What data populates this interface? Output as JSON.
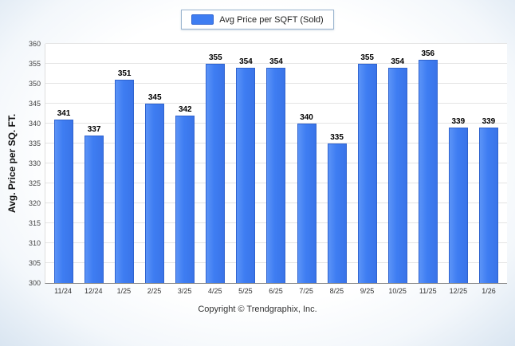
{
  "legend": {
    "label": "Avg Price per SQFT (Sold)"
  },
  "footer": {
    "copyright": "Copyright © Trendgraphix, Inc."
  },
  "colors": {
    "bar": "#3e7df2",
    "bar_border": "#2f63cf",
    "legend_border": "#9ab4cf",
    "gridline": "#e4e4e4",
    "axis": "#8a8a8a"
  },
  "chart_data": {
    "type": "bar",
    "title": "",
    "xlabel": "",
    "ylabel": "Avg. Price per SQ. FT.",
    "categories": [
      "11/24",
      "12/24",
      "1/25",
      "2/25",
      "3/25",
      "4/25",
      "5/25",
      "6/25",
      "7/25",
      "8/25",
      "9/25",
      "10/25",
      "11/25",
      "12/25",
      "1/26"
    ],
    "values": [
      341,
      337,
      351,
      345,
      342,
      355,
      354,
      354,
      340,
      335,
      355,
      354,
      356,
      339,
      339
    ],
    "ylim": [
      300,
      360
    ],
    "ytick_step": 5,
    "grid": true,
    "legend_position": "top",
    "legend_entries": [
      "Avg Price per SQFT (Sold)"
    ]
  }
}
